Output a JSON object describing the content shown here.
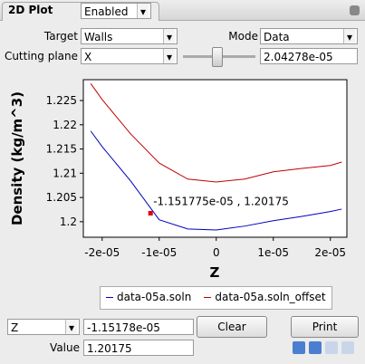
{
  "panel": {
    "title": "2D Plot",
    "state": "Enabled"
  },
  "controls": {
    "target_label": "Target",
    "target": "Walls",
    "mode_label": "Mode",
    "mode": "Data",
    "cutting_label": "Cutting plane",
    "cutting": "X",
    "cutting_value": "2.04278e-05"
  },
  "chart_data": {
    "type": "line",
    "xlabel": "Z",
    "ylabel": "Density (kg/m^3)",
    "x": [
      -2.2e-05,
      -2e-05,
      -1.5e-05,
      -1e-05,
      -5e-06,
      0,
      5e-06,
      1e-05,
      1.5e-05,
      2e-05,
      2.2e-05
    ],
    "series": [
      {
        "name": "data-05a.soln",
        "color": "#0000c0",
        "values": [
          1.2187,
          1.2155,
          1.2084,
          1.2004,
          1.1985,
          1.1983,
          1.1991,
          1.2002,
          1.2011,
          1.2021,
          1.2026
        ]
      },
      {
        "name": "data-05a.soln_offset",
        "color": "#c00000",
        "values": [
          1.2285,
          1.2252,
          1.2181,
          1.2121,
          1.2088,
          1.2082,
          1.2088,
          1.2103,
          1.211,
          1.2116,
          1.2123
        ]
      }
    ],
    "marker": {
      "x": -1.151775e-05,
      "y": 1.20175,
      "color": "#e00000"
    },
    "annotation": "-1.151775e-05 , 1.20175",
    "xlim": [
      -2.33e-05,
      2.29e-05
    ],
    "xticks": [
      {
        "value": -2e-05,
        "label": "-2e-05"
      },
      {
        "value": -1e-05,
        "label": "-1e-05"
      },
      0,
      {
        "value": 1e-05,
        "label": "1e-05"
      },
      {
        "value": 2e-05,
        "label": "2e-05"
      }
    ],
    "ylim": [
      1.1968,
      1.2293
    ],
    "yticks": [
      1.2,
      1.205,
      1.21,
      1.215,
      1.22,
      1.225
    ]
  },
  "footer": {
    "axis": "Z",
    "position": "-1.15178e-05",
    "clear": "Clear",
    "print": "Print",
    "value_label": "Value",
    "value": "1.20175"
  }
}
